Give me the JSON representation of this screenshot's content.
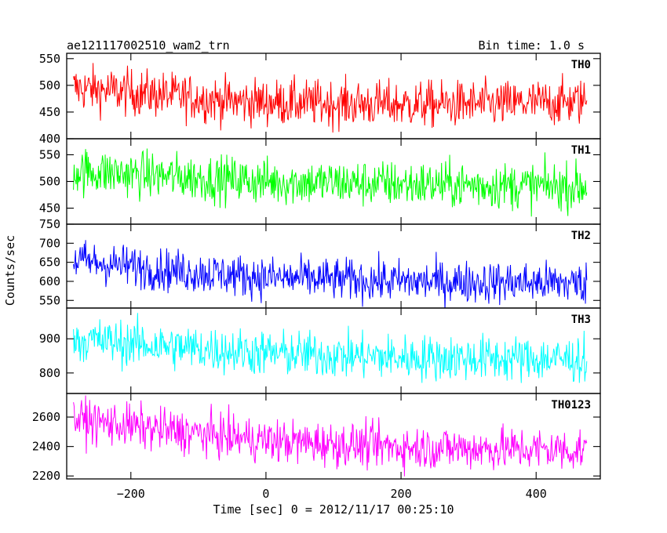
{
  "header": {
    "title": "ae121117002510_wam2_trn",
    "bin_time": "Bin time: 1.0 s"
  },
  "axes": {
    "xlabel": "Time [sec] 0 = 2012/11/17 00:25:10",
    "ylabel": "Counts/sec"
  },
  "chart_data": {
    "type": "line",
    "x_range": [
      -285,
      475
    ],
    "x_bin": 1.0,
    "x_ticks": [
      -200,
      0,
      200,
      400
    ],
    "xlim": [
      -295,
      495
    ],
    "panels": [
      {
        "name": "TH0",
        "color": "#ff0000",
        "ylim": [
          400,
          560
        ],
        "y_ticks": [
          400,
          450,
          500,
          550
        ],
        "trend": [
          [
            -285,
            495
          ],
          [
            -150,
            482
          ],
          [
            -50,
            470
          ],
          [
            50,
            467
          ],
          [
            200,
            464
          ],
          [
            350,
            465
          ],
          [
            475,
            470
          ]
        ],
        "noise_amplitude": 22
      },
      {
        "name": "TH1",
        "color": "#00ff00",
        "ylim": [
          420,
          580
        ],
        "y_ticks": [
          450,
          500,
          550
        ],
        "trend": [
          [
            -285,
            520
          ],
          [
            -150,
            510
          ],
          [
            0,
            500
          ],
          [
            200,
            495
          ],
          [
            475,
            490
          ]
        ],
        "noise_amplitude": 22
      },
      {
        "name": "TH2",
        "color": "#0000ff",
        "ylim": [
          530,
          750
        ],
        "y_ticks": [
          550,
          600,
          650,
          700,
          750
        ],
        "trend": [
          [
            -285,
            655
          ],
          [
            -150,
            630
          ],
          [
            0,
            610
          ],
          [
            200,
            600
          ],
          [
            475,
            595
          ]
        ],
        "noise_amplitude": 28
      },
      {
        "name": "TH3",
        "color": "#00ffff",
        "ylim": [
          740,
          990
        ],
        "y_ticks": [
          800,
          900
        ],
        "trend": [
          [
            -285,
            900
          ],
          [
            -150,
            878
          ],
          [
            0,
            858
          ],
          [
            200,
            845
          ],
          [
            475,
            840
          ]
        ],
        "noise_amplitude": 34
      },
      {
        "name": "TH0123",
        "color": "#ff00ff",
        "ylim": [
          2180,
          2760
        ],
        "y_ticks": [
          2200,
          2400,
          2600
        ],
        "trend": [
          [
            -285,
            2585
          ],
          [
            -150,
            2510
          ],
          [
            0,
            2440
          ],
          [
            200,
            2395
          ],
          [
            475,
            2375
          ]
        ],
        "noise_amplitude": 75
      }
    ]
  }
}
